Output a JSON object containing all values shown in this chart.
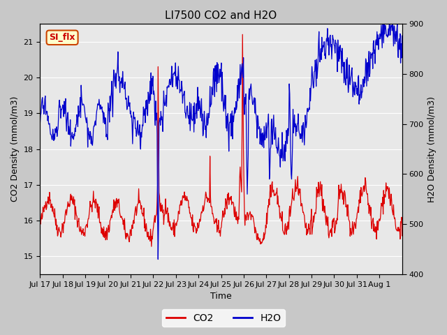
{
  "title": "LI7500 CO2 and H2O",
  "xlabel": "Time",
  "ylabel_left": "CO2 Density (mmol/m3)",
  "ylabel_right": "H2O Density (mmol/m3)",
  "ylim_left": [
    14.5,
    21.5
  ],
  "ylim_right": [
    400,
    900
  ],
  "xtick_labels": [
    "Jul 17",
    "Jul 18",
    "Jul 19",
    "Jul 20",
    "Jul 21",
    "Jul 22",
    "Jul 23",
    "Jul 24",
    "Jul 25",
    "Jul 26",
    "Jul 27",
    "Jul 28",
    "Jul 29",
    "Jul 30",
    "Jul 31",
    "Aug 1"
  ],
  "co2_color": "#dd0000",
  "h2o_color": "#0000cc",
  "plot_bg_color": "#e8e8e8",
  "fig_bg_color": "#c8c8c8",
  "annotation_text": "SI_flx",
  "annotation_bg": "#ffffcc",
  "annotation_border": "#cc4400",
  "legend_co2": "CO2",
  "legend_h2o": "H2O",
  "grid_color": "white",
  "linewidth": 0.9,
  "title_fontsize": 11,
  "axis_fontsize": 9,
  "tick_fontsize": 8
}
